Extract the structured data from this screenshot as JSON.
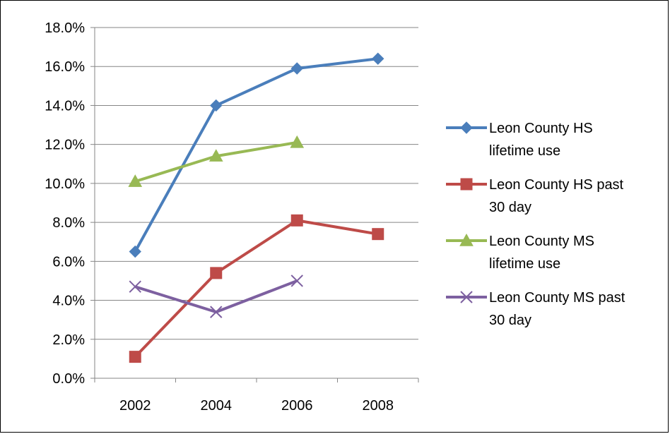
{
  "chart_data": {
    "type": "line",
    "title": "",
    "xlabel": "",
    "ylabel": "",
    "categories": [
      "2002",
      "2004",
      "2006",
      "2008"
    ],
    "ylim": [
      0,
      18
    ],
    "y_ticks": [
      "0.0%",
      "2.0%",
      "4.0%",
      "6.0%",
      "8.0%",
      "10.0%",
      "12.0%",
      "14.0%",
      "16.0%",
      "18.0%"
    ],
    "grid": "horizontal",
    "legend_placement": "right",
    "series": [
      {
        "name": "Leon County HS lifetime use",
        "name_lines": [
          "Leon County HS",
          "lifetime use"
        ],
        "values": [
          6.5,
          14.0,
          15.9,
          16.4
        ],
        "color": "#4a7ebb",
        "marker": "diamond"
      },
      {
        "name": "Leon County HS past 30 day",
        "name_lines": [
          "Leon County HS past",
          "30 day"
        ],
        "values": [
          1.1,
          5.4,
          8.1,
          7.4
        ],
        "color": "#be4b48",
        "marker": "square"
      },
      {
        "name": "Leon County MS lifetime use",
        "name_lines": [
          "Leon County MS",
          "lifetime use"
        ],
        "values": [
          10.1,
          11.4,
          12.1,
          null
        ],
        "color": "#98b954",
        "marker": "triangle"
      },
      {
        "name": "Leon County MS past 30 day",
        "name_lines": [
          "Leon County MS past",
          "30 day"
        ],
        "values": [
          4.7,
          3.4,
          5.0,
          null
        ],
        "color": "#7d60a0",
        "marker": "x"
      }
    ]
  }
}
